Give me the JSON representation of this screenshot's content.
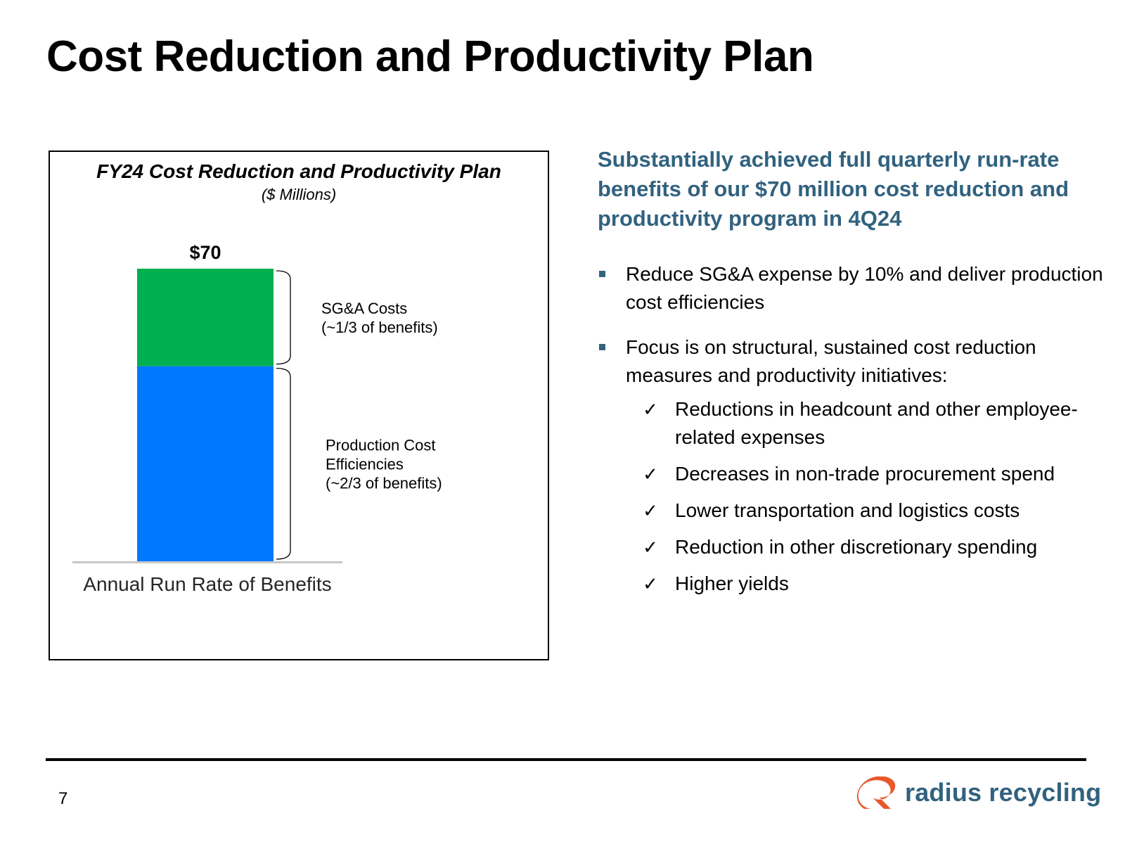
{
  "slide": {
    "title": "Cost Reduction and Productivity Plan",
    "page_number": "7"
  },
  "headline": "Substantially achieved full quarterly run-rate benefits of our $70 million cost reduction and productivity program in 4Q24",
  "bullets": [
    {
      "text": "Reduce SG&A expense by 10% and deliver production cost efficiencies",
      "checks": []
    },
    {
      "text": "Focus is on structural, sustained cost reduction measures and productivity initiatives:",
      "checks": [
        "Reductions in headcount and other employee-related expenses",
        "Decreases in non-trade procurement spend",
        "Lower transportation and logistics costs",
        "Reduction in other discretionary spending",
        "Higher yields"
      ]
    }
  ],
  "icons": {
    "bullet": "square-bullet-icon",
    "check": "check-mark-icon",
    "check_glyph": "✓"
  },
  "logo": {
    "text": "radius recycling",
    "mark_color": "#e8582c",
    "text_color": "#31627f"
  },
  "colors": {
    "accent": "#31627f",
    "sga": "#00b050",
    "production": "#0078ff"
  },
  "chart_data": {
    "type": "bar",
    "title": "FY24 Cost Reduction and Productivity Plan",
    "subtitle": "($ Millions)",
    "categories": [
      "Annual Run Rate of Benefits"
    ],
    "stacked": true,
    "total": 70,
    "total_label": "$70",
    "ylim": [
      0,
      70
    ],
    "series": [
      {
        "key": "production",
        "value": 46.67,
        "color": "#0078ff",
        "annotation": [
          "Production Cost",
          "Efficiencies",
          "(~2/3 of benefits)"
        ]
      },
      {
        "key": "sga",
        "value": 23.33,
        "color": "#00b050",
        "annotation": [
          "SG&A Costs",
          "(~1/3 of benefits)"
        ]
      }
    ]
  }
}
